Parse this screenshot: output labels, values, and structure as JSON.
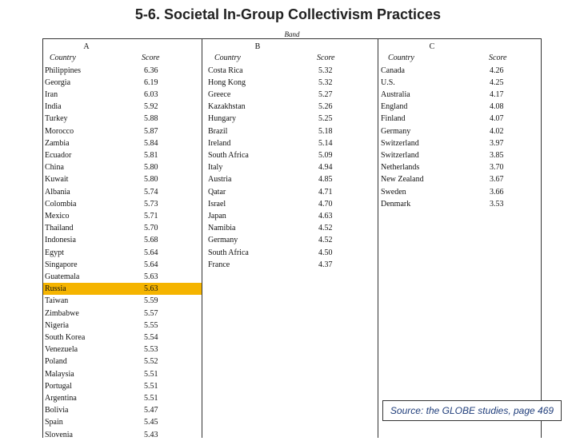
{
  "title": "5-6. Societal In-Group Collectivism Practices",
  "band_label": "Band",
  "band_a": "A",
  "band_b": "B",
  "band_c": "C",
  "country_header": "Country",
  "score_header": "Score",
  "highlight_color": "#f5b400",
  "band_a_rows": [
    {
      "country": "Philippines",
      "score": "6.36"
    },
    {
      "country": "Georgia",
      "score": "6.19"
    },
    {
      "country": "Iran",
      "score": "6.03"
    },
    {
      "country": "India",
      "score": "5.92"
    },
    {
      "country": "Turkey",
      "score": "5.88"
    },
    {
      "country": "Morocco",
      "score": "5.87"
    },
    {
      "country": "Zambia",
      "score": "5.84"
    },
    {
      "country": "Ecuador",
      "score": "5.81"
    },
    {
      "country": "China",
      "score": "5.80"
    },
    {
      "country": "Kuwait",
      "score": "5.80"
    },
    {
      "country": "Albania",
      "score": "5.74"
    },
    {
      "country": "Colombia",
      "score": "5.73"
    },
    {
      "country": "Mexico",
      "score": "5.71"
    },
    {
      "country": "Thailand",
      "score": "5.70"
    },
    {
      "country": "Indonesia",
      "score": "5.68"
    },
    {
      "country": "Egypt",
      "score": "5.64"
    },
    {
      "country": "Singapore",
      "score": "5.64"
    },
    {
      "country": "Guatemala",
      "score": "5.63"
    },
    {
      "country": "Russia",
      "score": "5.63",
      "highlight": true
    },
    {
      "country": "Taiwan",
      "score": "5.59"
    },
    {
      "country": "Zimbabwe",
      "score": "5.57"
    },
    {
      "country": "Nigeria",
      "score": "5.55"
    },
    {
      "country": "South Korea",
      "score": "5.54"
    },
    {
      "country": "Venezuela",
      "score": "5.53"
    },
    {
      "country": "Poland",
      "score": "5.52"
    },
    {
      "country": "Malaysia",
      "score": "5.51"
    },
    {
      "country": "Portugal",
      "score": "5.51"
    },
    {
      "country": "Argentina",
      "score": "5.51"
    },
    {
      "country": "Bolivia",
      "score": "5.47"
    },
    {
      "country": "Spain",
      "score": "5.45"
    },
    {
      "country": "Slovenia",
      "score": "5.43"
    }
  ],
  "band_b_rows": [
    {
      "country": "Costa Rica",
      "score": "5.32"
    },
    {
      "country": "Hong Kong",
      "score": "5.32"
    },
    {
      "country": "Greece",
      "score": "5.27"
    },
    {
      "country": "Kazakhstan",
      "score": "5.26"
    },
    {
      "country": "Hungary",
      "score": "5.25"
    },
    {
      "country": "Brazil",
      "score": "5.18"
    },
    {
      "country": "Ireland",
      "score": "5.14"
    },
    {
      "country": "South Africa",
      "score": "5.09"
    },
    {
      "country": "Italy",
      "score": "4.94"
    },
    {
      "country": "Austria",
      "score": "4.85"
    },
    {
      "country": "Qatar",
      "score": "4.71"
    },
    {
      "country": "Israel",
      "score": "4.70"
    },
    {
      "country": "Japan",
      "score": "4.63"
    },
    {
      "country": "Namibia",
      "score": "4.52"
    },
    {
      "country": "Germany",
      "score": "4.52"
    },
    {
      "country": "South Africa",
      "score": "4.50"
    },
    {
      "country": "France",
      "score": "4.37"
    }
  ],
  "band_c_rows": [
    {
      "country": "Canada",
      "score": "4.26"
    },
    {
      "country": "U.S.",
      "score": "4.25"
    },
    {
      "country": "Australia",
      "score": "4.17"
    },
    {
      "country": "England",
      "score": "4.08"
    },
    {
      "country": "Finland",
      "score": "4.07"
    },
    {
      "country": "Germany",
      "score": "4.02"
    },
    {
      "country": "Switzerland",
      "score": "3.97"
    },
    {
      "country": "Switzerland",
      "score": "3.85"
    },
    {
      "country": "Netherlands",
      "score": "3.70"
    },
    {
      "country": "New Zealand",
      "score": "3.67"
    },
    {
      "country": "Sweden",
      "score": "3.66"
    },
    {
      "country": "Denmark",
      "score": "3.53"
    }
  ],
  "source_text": "Source: the GLOBE studies, page 469"
}
